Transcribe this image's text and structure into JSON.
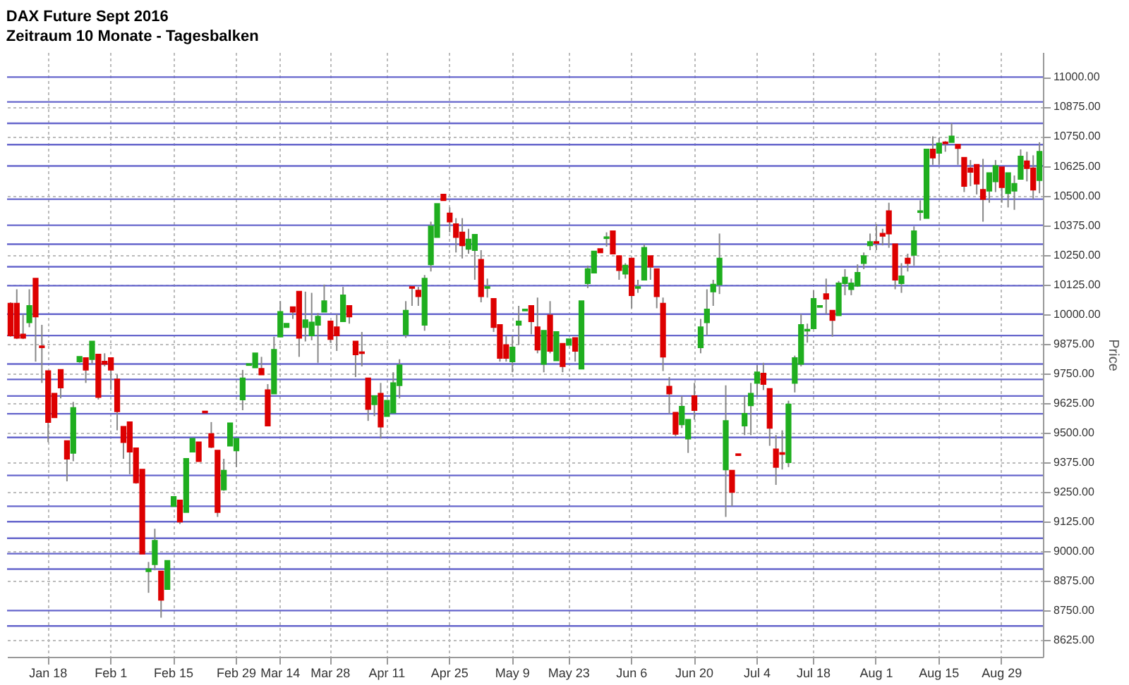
{
  "chart_data": {
    "type": "candlestick",
    "title": "DAX Future Sept 2016",
    "subtitle": "Zeitraum 10 Monate - Tagesbalken",
    "ylabel": "Price",
    "categories": [
      null,
      null,
      null,
      null,
      null,
      null,
      "Jan 18",
      null,
      null,
      null,
      null,
      null,
      null,
      null,
      null,
      null,
      "Feb 1",
      null,
      null,
      null,
      null,
      null,
      null,
      null,
      null,
      null,
      "Feb 15",
      null,
      null,
      null,
      null,
      null,
      null,
      null,
      null,
      null,
      "Feb 29",
      null,
      null,
      null,
      null,
      null,
      null,
      "Mar 14",
      null,
      null,
      null,
      null,
      null,
      null,
      null,
      "Mar 28",
      null,
      null,
      null,
      null,
      null,
      null,
      null,
      null,
      "Apr 11",
      null,
      null,
      null,
      null,
      null,
      null,
      null,
      null,
      null,
      "Apr 25",
      null,
      null,
      null,
      null,
      null,
      null,
      null,
      null,
      null,
      "May 9",
      null,
      null,
      null,
      null,
      null,
      null,
      null,
      null,
      "May 23",
      null,
      null,
      null,
      null,
      null,
      null,
      null,
      null,
      null,
      "Jun 6",
      null,
      null,
      null,
      null,
      null,
      null,
      null,
      null,
      null,
      "Jun 20",
      null,
      null,
      null,
      null,
      null,
      null,
      null,
      null,
      null,
      "Jul 4",
      null,
      null,
      null,
      null,
      null,
      null,
      null,
      null,
      "Jul 18",
      null,
      null,
      null,
      null,
      null,
      null,
      null,
      null,
      null,
      "Aug 1",
      null,
      null,
      null,
      null,
      null,
      null,
      null,
      null,
      null,
      "Aug 15",
      null,
      null,
      null,
      null,
      null,
      null,
      null,
      null,
      null,
      "Aug 29",
      null,
      null,
      null,
      null,
      null,
      null
    ],
    "ohlc": [
      [
        10045,
        10050,
        9905,
        9910
      ],
      [
        10045,
        10105,
        9895,
        9900
      ],
      [
        9915,
        10000,
        9895,
        9900
      ],
      [
        9965,
        10105,
        9945,
        10035
      ],
      [
        10150,
        10150,
        9800,
        9990
      ],
      [
        9865,
        9955,
        9710,
        9860
      ],
      [
        9760,
        9760,
        9460,
        9545
      ],
      [
        9665,
        9665,
        9565,
        9565
      ],
      [
        9765,
        9765,
        9645,
        9690
      ],
      [
        9465,
        9465,
        9295,
        9390
      ],
      [
        9415,
        9630,
        9380,
        9605
      ],
      [
        9800,
        9820,
        9795,
        9820
      ],
      [
        9815,
        9815,
        9710,
        9765
      ],
      [
        9810,
        9885,
        9790,
        9885
      ],
      [
        9830,
        9830,
        9640,
        9650
      ],
      [
        9800,
        9835,
        9780,
        9790
      ],
      [
        9815,
        9815,
        9680,
        9765
      ],
      [
        9725,
        9745,
        9510,
        9590
      ],
      [
        9525,
        9525,
        9390,
        9460
      ],
      [
        9545,
        9545,
        9325,
        9420
      ],
      [
        9435,
        9435,
        9285,
        9290
      ],
      [
        9345,
        9345,
        8990,
        8990
      ],
      [
        8915,
        8955,
        8825,
        8925
      ],
      [
        8945,
        9095,
        8920,
        9045
      ],
      [
        8915,
        8915,
        8720,
        8795
      ],
      [
        8840,
        8960,
        8840,
        8960
      ],
      [
        9190,
        9230,
        9190,
        9230
      ],
      [
        9215,
        9215,
        9115,
        9125
      ],
      [
        9165,
        9390,
        9165,
        9390
      ],
      [
        9420,
        9475,
        9420,
        9475
      ],
      [
        9460,
        9460,
        9380,
        9380
      ],
      [
        9590,
        9590,
        9585,
        9585
      ],
      [
        9495,
        9545,
        9435,
        9440
      ],
      [
        9425,
        9425,
        9145,
        9165
      ],
      [
        9260,
        9390,
        9255,
        9340
      ],
      [
        9445,
        9540,
        9445,
        9540
      ],
      [
        9425,
        9475,
        9355,
        9475
      ],
      [
        9640,
        9765,
        9595,
        9730
      ],
      [
        9785,
        9790,
        9785,
        9790
      ],
      [
        9775,
        9835,
        9775,
        9835
      ],
      [
        9770,
        9820,
        9745,
        9745
      ],
      [
        9680,
        9705,
        9530,
        9530
      ],
      [
        9665,
        9905,
        9665,
        9850
      ],
      [
        9905,
        10055,
        9905,
        10010
      ],
      [
        9945,
        9960,
        9945,
        9960
      ],
      [
        10030,
        10030,
        9980,
        10010
      ],
      [
        10095,
        10095,
        9820,
        9900
      ],
      [
        9945,
        10095,
        9885,
        9975
      ],
      [
        9910,
        10090,
        9890,
        9965
      ],
      [
        9955,
        10005,
        9795,
        9990
      ],
      [
        10010,
        10125,
        10010,
        10055
      ],
      [
        9970,
        9970,
        9880,
        9895
      ],
      [
        9945,
        10000,
        9845,
        9910
      ],
      [
        9970,
        10115,
        9970,
        10080
      ],
      [
        10035,
        10035,
        9960,
        9990
      ],
      [
        9885,
        9885,
        9735,
        9830
      ],
      [
        9840,
        9925,
        9780,
        9835
      ],
      [
        9730,
        9730,
        9550,
        9600
      ],
      [
        9620,
        9655,
        9570,
        9655
      ],
      [
        9665,
        9710,
        9475,
        9525
      ],
      [
        9570,
        9635,
        9570,
        9635
      ],
      [
        9585,
        9755,
        9585,
        9710
      ],
      [
        9700,
        9810,
        9645,
        9785
      ],
      [
        9915,
        10055,
        9900,
        10015
      ],
      [
        10115,
        10115,
        10035,
        10110
      ],
      [
        10100,
        10115,
        10035,
        10075
      ],
      [
        9955,
        10165,
        9930,
        10150
      ],
      [
        10210,
        10390,
        10180,
        10370
      ],
      [
        10325,
        10465,
        10325,
        10465
      ],
      [
        10505,
        10505,
        10480,
        10480
      ],
      [
        10425,
        10450,
        10345,
        10390
      ],
      [
        10380,
        10405,
        10260,
        10325
      ],
      [
        10345,
        10405,
        10235,
        10290
      ],
      [
        10275,
        10360,
        10255,
        10315
      ],
      [
        10270,
        10335,
        10145,
        10335
      ],
      [
        10230,
        10270,
        10050,
        10075
      ],
      [
        10110,
        10150,
        10070,
        10115
      ],
      [
        10065,
        10065,
        9925,
        9945
      ],
      [
        9955,
        9955,
        9800,
        9815
      ],
      [
        9870,
        9910,
        9800,
        9815
      ],
      [
        9800,
        9910,
        9755,
        9860
      ],
      [
        9955,
        10035,
        9870,
        9970
      ],
      [
        10015,
        10020,
        10015,
        10020
      ],
      [
        10035,
        10035,
        9915,
        9970
      ],
      [
        9945,
        10070,
        9835,
        9850
      ],
      [
        9790,
        9930,
        9755,
        9930
      ],
      [
        9995,
        10055,
        9835,
        9845
      ],
      [
        9805,
        9925,
        9805,
        9925
      ],
      [
        9875,
        9875,
        9755,
        9780
      ],
      [
        9870,
        9895,
        9870,
        9895
      ],
      [
        9900,
        9900,
        9800,
        9845
      ],
      [
        9770,
        10055,
        9770,
        10055
      ],
      [
        10130,
        10205,
        10110,
        10190
      ],
      [
        10175,
        10265,
        10175,
        10265
      ],
      [
        10275,
        10275,
        10260,
        10260
      ],
      [
        10320,
        10345,
        10285,
        10325
      ],
      [
        10350,
        10350,
        10255,
        10255
      ],
      [
        10245,
        10245,
        10145,
        10185
      ],
      [
        10170,
        10215,
        10150,
        10205
      ],
      [
        10235,
        10235,
        10025,
        10080
      ],
      [
        10110,
        10145,
        10090,
        10115
      ],
      [
        10145,
        10295,
        10145,
        10280
      ],
      [
        10245,
        10245,
        10145,
        10200
      ],
      [
        10190,
        10190,
        10025,
        10075
      ],
      [
        10045,
        10070,
        9760,
        9820
      ],
      [
        9695,
        9735,
        9580,
        9665
      ],
      [
        9585,
        9585,
        9485,
        9495
      ],
      [
        9535,
        9655,
        9520,
        9610
      ],
      [
        9475,
        9555,
        9415,
        9555
      ],
      [
        9655,
        9710,
        9555,
        9595
      ],
      [
        9860,
        9980,
        9835,
        9945
      ],
      [
        9965,
        10105,
        9910,
        10020
      ],
      [
        10095,
        10145,
        10035,
        10125
      ],
      [
        10125,
        10340,
        10085,
        10235
      ],
      [
        9345,
        9700,
        9145,
        9550
      ],
      [
        9340,
        9340,
        9190,
        9250
      ],
      [
        9410,
        9410,
        9405,
        9405
      ],
      [
        9530,
        9655,
        9490,
        9580
      ],
      [
        9615,
        9710,
        9490,
        9665
      ],
      [
        9710,
        9785,
        9655,
        9755
      ],
      [
        9750,
        9795,
        9680,
        9705
      ],
      [
        9685,
        9685,
        9445,
        9520
      ],
      [
        9430,
        9490,
        9280,
        9355
      ],
      [
        9415,
        9510,
        9345,
        9410
      ],
      [
        9375,
        9635,
        9355,
        9620
      ],
      [
        9710,
        9825,
        9670,
        9815
      ],
      [
        9790,
        10000,
        9780,
        9955
      ],
      [
        9930,
        9960,
        9880,
        9935
      ],
      [
        9940,
        10100,
        9940,
        10065
      ],
      [
        10030,
        10035,
        10030,
        10035
      ],
      [
        10085,
        10150,
        10000,
        10065
      ],
      [
        10015,
        10015,
        9905,
        9975
      ],
      [
        9995,
        10140,
        9995,
        10130
      ],
      [
        10130,
        10190,
        10080,
        10155
      ],
      [
        10105,
        10150,
        10080,
        10130
      ],
      [
        10120,
        10210,
        10115,
        10175
      ],
      [
        10215,
        10260,
        10190,
        10245
      ],
      [
        10290,
        10340,
        10270,
        10305
      ],
      [
        10305,
        10380,
        10270,
        10300
      ],
      [
        10340,
        10360,
        10290,
        10330
      ],
      [
        10435,
        10470,
        10280,
        10340
      ],
      [
        10295,
        10295,
        10105,
        10145
      ],
      [
        10130,
        10215,
        10090,
        10160
      ],
      [
        10235,
        10255,
        10180,
        10215
      ],
      [
        10250,
        10370,
        10205,
        10350
      ],
      [
        10430,
        10480,
        10395,
        10435
      ],
      [
        10405,
        10695,
        10405,
        10695
      ],
      [
        10695,
        10750,
        10630,
        10660
      ],
      [
        10680,
        10745,
        10630,
        10720
      ],
      [
        10725,
        10730,
        10685,
        10720
      ],
      [
        10725,
        10805,
        10725,
        10750
      ],
      [
        10715,
        10715,
        10630,
        10700
      ],
      [
        10660,
        10660,
        10515,
        10540
      ],
      [
        10615,
        10650,
        10540,
        10600
      ],
      [
        10630,
        10630,
        10505,
        10550
      ],
      [
        10525,
        10655,
        10390,
        10485
      ],
      [
        10520,
        10595,
        10470,
        10595
      ],
      [
        10560,
        10650,
        10515,
        10625
      ],
      [
        10620,
        10620,
        10470,
        10535
      ],
      [
        10510,
        10595,
        10450,
        10595
      ],
      [
        10520,
        10585,
        10440,
        10550
      ],
      [
        10570,
        10695,
        10570,
        10665
      ],
      [
        10645,
        10685,
        10560,
        10615
      ],
      [
        10615,
        10670,
        10485,
        10525
      ],
      [
        10565,
        10725,
        10510,
        10685
      ]
    ],
    "colors": [
      "#dd0000",
      "#dd0000",
      "#dd0000",
      "#1fae1f",
      "#dd0000",
      "#dd0000",
      "#dd0000",
      "#dd0000",
      "#dd0000",
      "#dd0000",
      "#1fae1f",
      "#1fae1f",
      "#dd0000",
      "#1fae1f",
      "#dd0000",
      "#dd0000",
      "#dd0000",
      "#dd0000",
      "#dd0000",
      "#dd0000",
      "#dd0000",
      "#dd0000",
      "#1fae1f",
      "#1fae1f",
      "#dd0000",
      "#1fae1f",
      "#1fae1f",
      "#dd0000",
      "#1fae1f",
      "#1fae1f",
      "#dd0000",
      "#dd0000",
      "#dd0000",
      "#dd0000",
      "#1fae1f",
      "#1fae1f",
      "#1fae1f",
      "#1fae1f",
      "#1fae1f",
      "#1fae1f",
      "#dd0000",
      "#dd0000",
      "#1fae1f",
      "#1fae1f",
      "#1fae1f",
      "#dd0000",
      "#dd0000",
      "#1fae1f",
      "#1fae1f",
      "#1fae1f",
      "#1fae1f",
      "#dd0000",
      "#dd0000",
      "#1fae1f",
      "#dd0000",
      "#dd0000",
      "#dd0000",
      "#dd0000",
      "#1fae1f",
      "#dd0000",
      "#1fae1f",
      "#1fae1f",
      "#1fae1f",
      "#1fae1f",
      "#dd0000",
      "#dd0000",
      "#1fae1f",
      "#1fae1f",
      "#1fae1f",
      "#dd0000",
      "#dd0000",
      "#dd0000",
      "#dd0000",
      "#1fae1f",
      "#1fae1f",
      "#dd0000",
      "#1fae1f",
      "#dd0000",
      "#dd0000",
      "#dd0000",
      "#1fae1f",
      "#1fae1f",
      "#1fae1f",
      "#dd0000",
      "#dd0000",
      "#1fae1f",
      "#dd0000",
      "#1fae1f",
      "#dd0000",
      "#1fae1f",
      "#dd0000",
      "#1fae1f",
      "#1fae1f",
      "#1fae1f",
      "#dd0000",
      "#1fae1f",
      "#dd0000",
      "#dd0000",
      "#1fae1f",
      "#dd0000",
      "#1fae1f",
      "#1fae1f",
      "#dd0000",
      "#dd0000",
      "#dd0000",
      "#dd0000",
      "#dd0000",
      "#1fae1f",
      "#1fae1f",
      "#dd0000",
      "#1fae1f",
      "#1fae1f",
      "#1fae1f",
      "#1fae1f",
      "#1fae1f",
      "#dd0000",
      "#dd0000",
      "#1fae1f",
      "#1fae1f",
      "#1fae1f",
      "#dd0000",
      "#dd0000",
      "#dd0000",
      "#dd0000",
      "#1fae1f",
      "#1fae1f",
      "#1fae1f",
      "#1fae1f",
      "#1fae1f",
      "#1fae1f",
      "#dd0000",
      "#dd0000",
      "#1fae1f",
      "#1fae1f",
      "#1fae1f",
      "#1fae1f",
      "#1fae1f",
      "#1fae1f",
      "#dd0000",
      "#dd0000",
      "#dd0000",
      "#dd0000",
      "#1fae1f",
      "#dd0000",
      "#1fae1f",
      "#1fae1f",
      "#1fae1f",
      "#dd0000",
      "#1fae1f",
      "#dd0000",
      "#1fae1f",
      "#dd0000",
      "#dd0000",
      "#dd0000",
      "#dd0000",
      "#dd0000",
      "#1fae1f",
      "#1fae1f",
      "#dd0000",
      "#1fae1f",
      "#1fae1f",
      "#1fae1f",
      "#dd0000",
      "#dd0000",
      "#1fae1f"
    ],
    "ylim": [
      8555,
      11105
    ],
    "yticks": [
      {
        "value": 8625,
        "label": "8625.00"
      },
      {
        "value": 8750,
        "label": "8750.00"
      },
      {
        "value": 8875,
        "label": "8875.00"
      },
      {
        "value": 9000,
        "label": "9000.00"
      },
      {
        "value": 9125,
        "label": "9125.00"
      },
      {
        "value": 9250,
        "label": "9250.00"
      },
      {
        "value": 9375,
        "label": "9375.00"
      },
      {
        "value": 9500,
        "label": "9500.00"
      },
      {
        "value": 9625,
        "label": "9625.00"
      },
      {
        "value": 9750,
        "label": "9750.00"
      },
      {
        "value": 9875,
        "label": "9875.00"
      },
      {
        "value": 10000,
        "label": "10000.00"
      },
      {
        "value": 10125,
        "label": "10125.00"
      },
      {
        "value": 10250,
        "label": "10250.00"
      },
      {
        "value": 10375,
        "label": "10375.00"
      },
      {
        "value": 10500,
        "label": "10500.00"
      },
      {
        "value": 10625,
        "label": "10625.00"
      },
      {
        "value": 10750,
        "label": "10750.00"
      },
      {
        "value": 10875,
        "label": "10875.00"
      },
      {
        "value": 11000,
        "label": "11000.00"
      }
    ],
    "ref_lines": [
      {
        "axis": "y",
        "value": 11000,
        "color": "#6666cc"
      },
      {
        "axis": "y",
        "value": 10895,
        "color": "#6666cc"
      },
      {
        "axis": "y",
        "value": 10805,
        "color": "#6666cc"
      },
      {
        "axis": "y",
        "value": 10715,
        "color": "#6666cc"
      },
      {
        "axis": "y",
        "value": 10625,
        "color": "#6666cc"
      },
      {
        "axis": "y",
        "value": 10485,
        "color": "#6666cc"
      },
      {
        "axis": "y",
        "value": 10375,
        "color": "#6666cc"
      },
      {
        "axis": "y",
        "value": 10295,
        "color": "#6666cc"
      },
      {
        "axis": "y",
        "value": 10200,
        "color": "#6666cc"
      },
      {
        "axis": "y",
        "value": 10120,
        "color": "#6666cc"
      },
      {
        "axis": "y",
        "value": 10000,
        "color": "#6666cc"
      },
      {
        "axis": "y",
        "value": 9910,
        "color": "#6666cc"
      },
      {
        "axis": "y",
        "value": 9790,
        "color": "#6666cc"
      },
      {
        "axis": "y",
        "value": 9725,
        "color": "#6666cc"
      },
      {
        "axis": "y",
        "value": 9655,
        "color": "#6666cc"
      },
      {
        "axis": "y",
        "value": 9580,
        "color": "#6666cc"
      },
      {
        "axis": "y",
        "value": 9480,
        "color": "#6666cc"
      },
      {
        "axis": "y",
        "value": 9320,
        "color": "#6666cc"
      },
      {
        "axis": "y",
        "value": 9190,
        "color": "#6666cc"
      },
      {
        "axis": "y",
        "value": 9125,
        "color": "#6666cc"
      },
      {
        "axis": "y",
        "value": 9055,
        "color": "#6666cc"
      },
      {
        "axis": "y",
        "value": 8990,
        "color": "#6666cc"
      },
      {
        "axis": "y",
        "value": 8925,
        "color": "#6666cc"
      },
      {
        "axis": "y",
        "value": 8750,
        "color": "#6666cc"
      },
      {
        "axis": "y",
        "value": 8685,
        "color": "#6666cc"
      }
    ],
    "grid": true
  }
}
